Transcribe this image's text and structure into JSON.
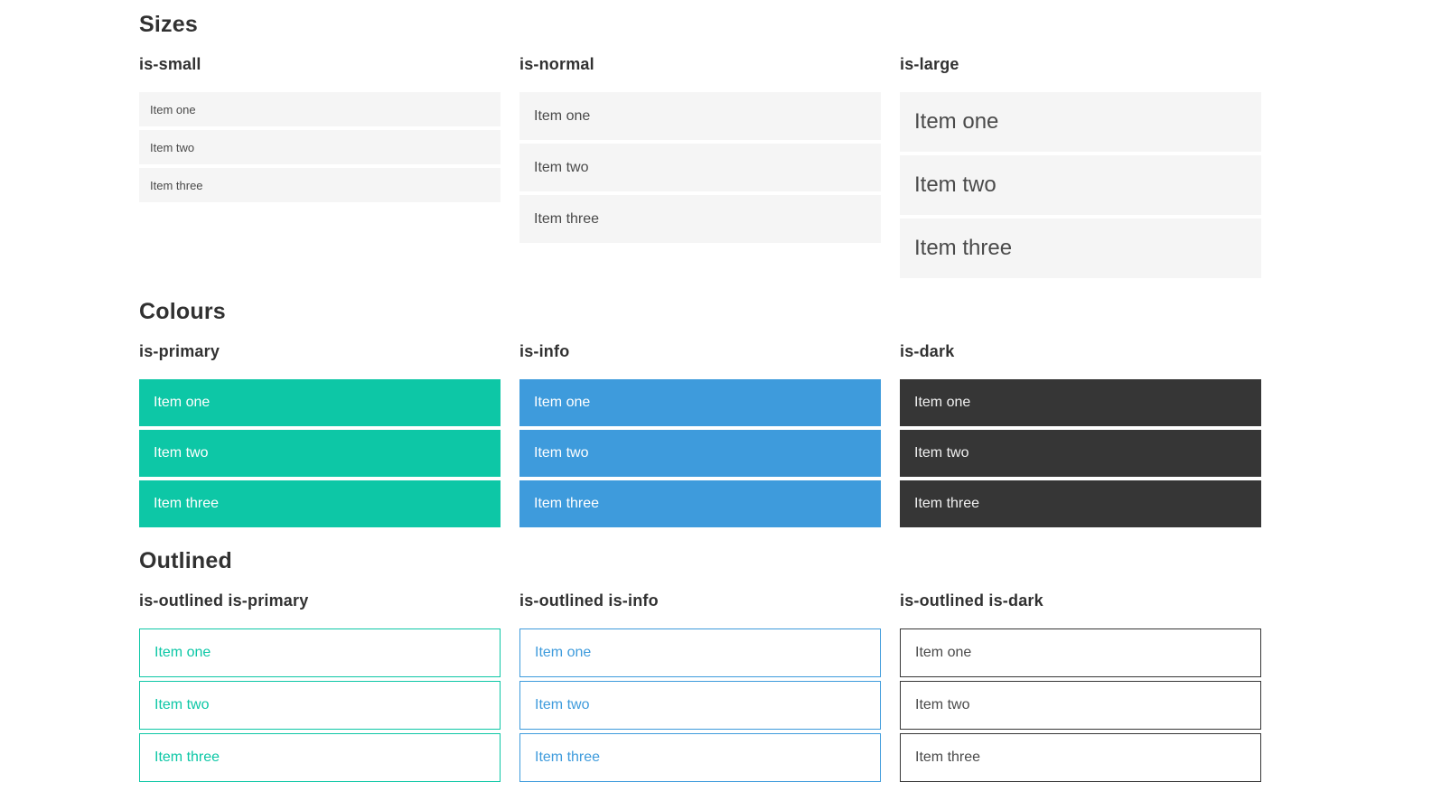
{
  "colors": {
    "primary": "#0dc7a6",
    "info": "#3e9bdc",
    "dark": "#363636",
    "plain_bg": "#f5f5f5",
    "plain_text": "#4a4a4a",
    "on_dark_text": "#f0f0f0",
    "heading_text": "#313131"
  },
  "sections": [
    {
      "title": "Sizes",
      "groups": [
        {
          "label": "is-small",
          "items": [
            "Item one",
            "Item two",
            "Item three"
          ]
        },
        {
          "label": "is-normal",
          "items": [
            "Item one",
            "Item two",
            "Item three"
          ]
        },
        {
          "label": "is-large",
          "items": [
            "Item one",
            "Item two",
            "Item three"
          ]
        }
      ]
    },
    {
      "title": "Colours",
      "groups": [
        {
          "label": "is-primary",
          "items": [
            "Item one",
            "Item two",
            "Item three"
          ]
        },
        {
          "label": "is-info",
          "items": [
            "Item one",
            "Item two",
            "Item three"
          ]
        },
        {
          "label": "is-dark",
          "items": [
            "Item one",
            "Item two",
            "Item three"
          ]
        }
      ]
    },
    {
      "title": "Outlined",
      "groups": [
        {
          "label": "is-outlined is-primary",
          "items": [
            "Item one",
            "Item two",
            "Item three"
          ]
        },
        {
          "label": "is-outlined is-info",
          "items": [
            "Item one",
            "Item two",
            "Item three"
          ]
        },
        {
          "label": "is-outlined is-dark",
          "items": [
            "Item one",
            "Item two",
            "Item three"
          ]
        }
      ]
    }
  ]
}
